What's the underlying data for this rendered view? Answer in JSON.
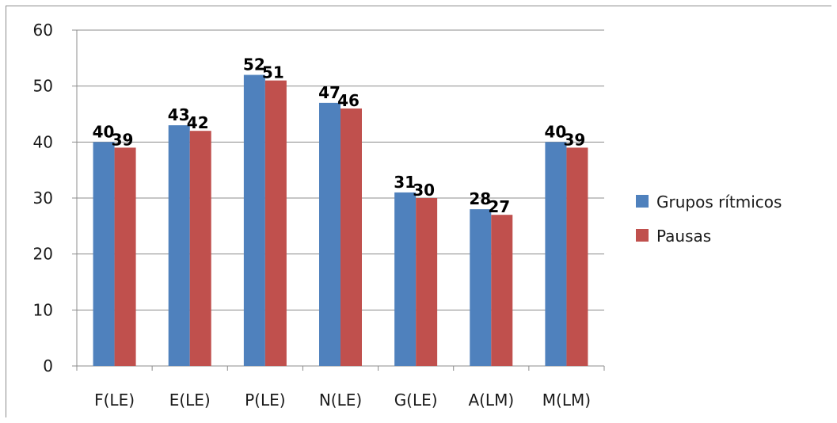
{
  "chart_data": {
    "type": "bar",
    "title": "",
    "xlabel": "",
    "ylabel": "",
    "categories": [
      "F(LE)",
      "E(LE)",
      "P(LE)",
      "N(LE)",
      "G(LE)",
      "A(LM)",
      "M(LM)"
    ],
    "series": [
      {
        "name": "Grupos rítmicos",
        "color": "#4f81bd",
        "values": [
          40,
          43,
          52,
          47,
          31,
          28,
          40
        ]
      },
      {
        "name": "Pausas",
        "color": "#c0504d",
        "values": [
          39,
          42,
          51,
          46,
          30,
          27,
          39
        ]
      }
    ],
    "ylim": [
      0,
      60
    ],
    "yticks": [
      0,
      10,
      20,
      30,
      40,
      50,
      60
    ],
    "grid": true,
    "legend": "right",
    "data_labels": true
  }
}
